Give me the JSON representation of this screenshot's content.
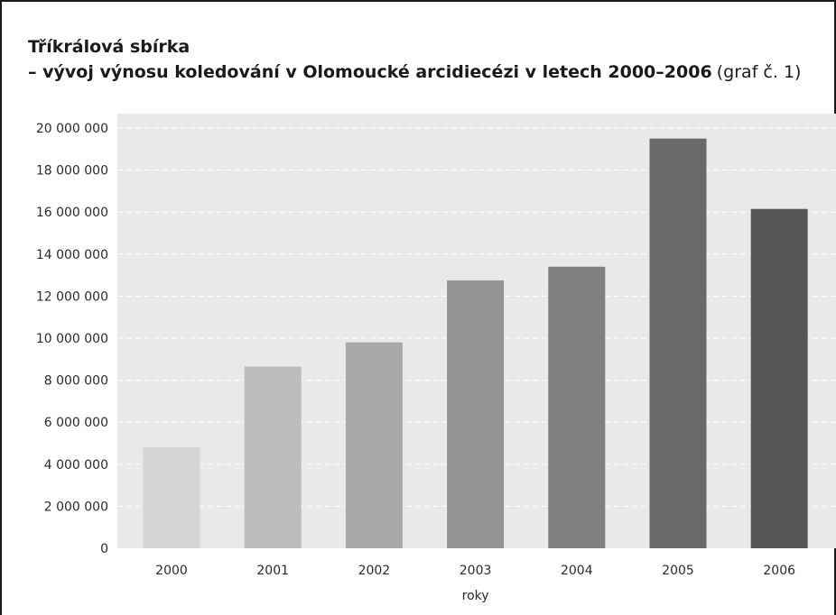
{
  "title_bold_1": "Tříkrálová sbírka",
  "title_bold_2": "– vývoj výnosu koledování v Olomoucké arcidiecézi v letech 2000–2006",
  "title_suffix": "(graf č. 1)",
  "chart_data": {
    "type": "bar",
    "categories": [
      "2000",
      "2001",
      "2002",
      "2003",
      "2004",
      "2005",
      "2006"
    ],
    "values": [
      4800000,
      8650000,
      9800000,
      12750000,
      13400000,
      19500000,
      16150000
    ],
    "bar_colors": [
      "#d4d4d5",
      "#bdbdbe",
      "#a9a9aa",
      "#949495",
      "#7f7f80",
      "#69696a",
      "#565657"
    ],
    "xlabel": "roky",
    "ylabel": "",
    "ylim": [
      0,
      20000000
    ],
    "yticks": [
      0,
      2000000,
      4000000,
      6000000,
      8000000,
      10000000,
      12000000,
      14000000,
      16000000,
      18000000,
      20000000
    ],
    "ytick_labels": [
      "0",
      "2 000 000",
      "4 000 000",
      "6 000 000",
      "8 000 000",
      "10 000 000",
      "12 000 000",
      "14 000 000",
      "16 000 000",
      "18 000 000",
      "20 000 000"
    ],
    "grid": true,
    "plot_background": "#e9e9ea"
  }
}
